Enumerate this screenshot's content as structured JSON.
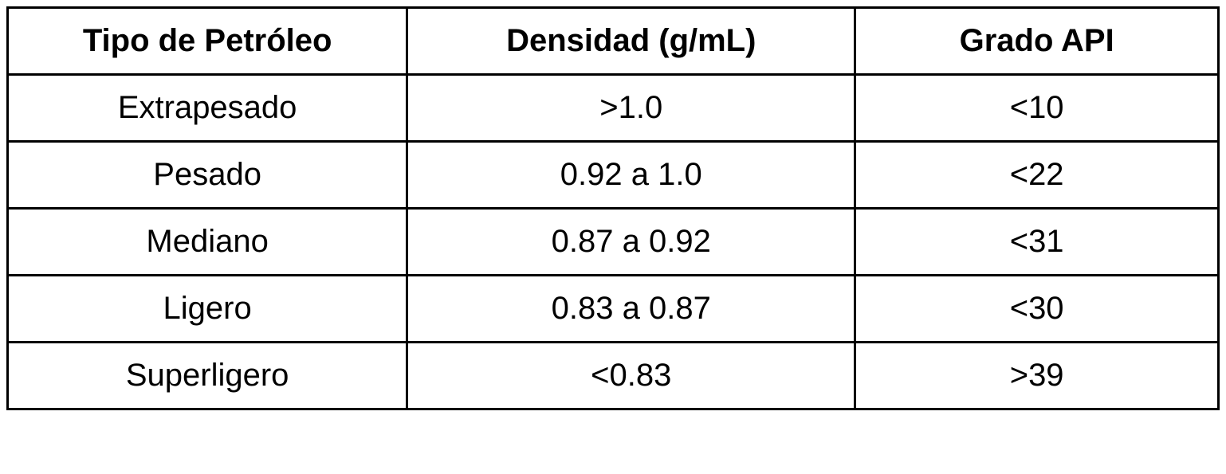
{
  "table": {
    "columns": [
      {
        "label": "Tipo de Petróleo",
        "key": "tipo"
      },
      {
        "label": "Densidad (g/mL)",
        "key": "densidad"
      },
      {
        "label": "Grado API",
        "key": "grado"
      }
    ],
    "rows": [
      {
        "tipo": "Extrapesado",
        "densidad": ">1.0",
        "grado": "<10"
      },
      {
        "tipo": "Pesado",
        "densidad": "0.92 a 1.0",
        "grado": "<22"
      },
      {
        "tipo": "Mediano",
        "densidad": "0.87 a 0.92",
        "grado": "<31"
      },
      {
        "tipo": "Ligero",
        "densidad": "0.83 a 0.87",
        "grado": "<30"
      },
      {
        "tipo": "Superligero",
        "densidad": "<0.83",
        "grado": ">39"
      }
    ],
    "border_color": "#000000",
    "background_color": "#ffffff",
    "text_color": "#000000",
    "header_fontsize": 40,
    "cell_fontsize": 40,
    "header_fontweight": "bold",
    "cell_fontweight": "normal",
    "border_width": 3
  }
}
